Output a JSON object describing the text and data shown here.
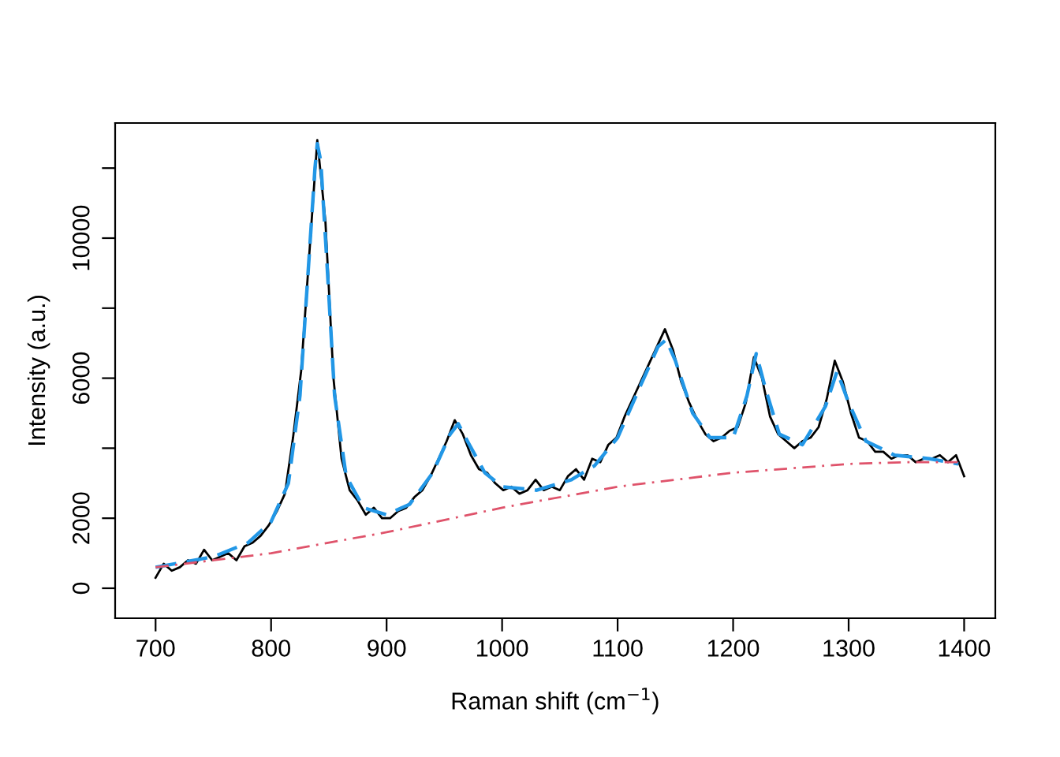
{
  "chart_data": {
    "type": "line",
    "xlabel": "Raman shift (cm$^{−1}$)",
    "ylabel": "Intensity (a.u.)",
    "xlim": [
      665,
      1427
    ],
    "ylim": [
      -856,
      13288
    ],
    "xticks": [
      700,
      800,
      900,
      1000,
      1100,
      1200,
      1300,
      1400
    ],
    "yticks": [
      0,
      2000,
      {
        "value": 4000,
        "label": null
      },
      6000,
      {
        "value": 8000,
        "label": null
      },
      10000,
      {
        "value": 12000,
        "label": null
      }
    ],
    "grid": false,
    "legend": false,
    "series": [
      {
        "color": "#000000",
        "line_style": "solid",
        "x": [
          700,
          707,
          714,
          721,
          728,
          735,
          742,
          749,
          756,
          763,
          770,
          777,
          784,
          791,
          798,
          805,
          812,
          819,
          826,
          833,
          840,
          847,
          854,
          861,
          868,
          875,
          882,
          889,
          896,
          903,
          910,
          917,
          924,
          931,
          938,
          945,
          952,
          959,
          966,
          973,
          980,
          987,
          994,
          1001,
          1008,
          1015,
          1022,
          1029,
          1036,
          1043,
          1050,
          1057,
          1064,
          1071,
          1078,
          1085,
          1092,
          1099,
          1106,
          1113,
          1120,
          1127,
          1134,
          1141,
          1148,
          1155,
          1162,
          1169,
          1176,
          1183,
          1190,
          1197,
          1204,
          1211,
          1218,
          1225,
          1232,
          1239,
          1246,
          1253,
          1260,
          1267,
          1274,
          1281,
          1288,
          1295,
          1302,
          1309,
          1316,
          1323,
          1330,
          1337,
          1344,
          1351,
          1358,
          1365,
          1372,
          1379,
          1386,
          1393,
          1400
        ],
        "values": [
          300,
          700,
          500,
          600,
          800,
          700,
          1100,
          800,
          900,
          1000,
          800,
          1200,
          1300,
          1500,
          1800,
          2200,
          2700,
          4300,
          6200,
          9500,
          12800,
          10500,
          6000,
          3700,
          2800,
          2500,
          2100,
          2300,
          2000,
          2000,
          2200,
          2300,
          2600,
          2800,
          3200,
          3700,
          4200,
          4800,
          4400,
          3800,
          3400,
          3300,
          3000,
          2800,
          2900,
          2700,
          2800,
          3100,
          2800,
          2900,
          2800,
          3200,
          3400,
          3100,
          3700,
          3600,
          4100,
          4300,
          4900,
          5400,
          5900,
          6400,
          6900,
          7400,
          6800,
          5900,
          5300,
          4800,
          4400,
          4200,
          4300,
          4500,
          4600,
          5300,
          6600,
          6000,
          4900,
          4400,
          4200,
          4000,
          4200,
          4300,
          4600,
          5400,
          6500,
          5900,
          5000,
          4300,
          4200,
          3900,
          3900,
          3700,
          3800,
          3800,
          3600,
          3700,
          3700,
          3800,
          3600,
          3800,
          3200
        ]
      },
      {
        "color": "#2297e6",
        "line_style": "dashed",
        "x": [
          700,
          750,
          780,
          800,
          815,
          825,
          832,
          838,
          840,
          843,
          848,
          855,
          865,
          880,
          900,
          920,
          940,
          955,
          962,
          970,
          985,
          1000,
          1030,
          1060,
          1080,
          1100,
          1120,
          1135,
          1142,
          1150,
          1165,
          1180,
          1200,
          1212,
          1220,
          1228,
          1240,
          1260,
          1280,
          1290,
          1300,
          1315,
          1340,
          1370,
          1395
        ],
        "values": [
          600,
          900,
          1300,
          1900,
          3000,
          5500,
          9000,
          12000,
          12700,
          12200,
          9500,
          5500,
          3200,
          2300,
          2100,
          2400,
          3300,
          4400,
          4700,
          4200,
          3300,
          2900,
          2800,
          3100,
          3500,
          4300,
          5800,
          6900,
          7100,
          6500,
          5000,
          4300,
          4300,
          5500,
          6700,
          5700,
          4400,
          4100,
          5200,
          6200,
          5300,
          4200,
          3800,
          3700,
          3550
        ]
      },
      {
        "color": "#df536b",
        "line_style": "dashdot",
        "x": [
          700,
          800,
          900,
          1000,
          1100,
          1200,
          1300,
          1350,
          1395
        ],
        "values": [
          600,
          1000,
          1600,
          2300,
          2900,
          3300,
          3550,
          3600,
          3600
        ]
      }
    ]
  }
}
